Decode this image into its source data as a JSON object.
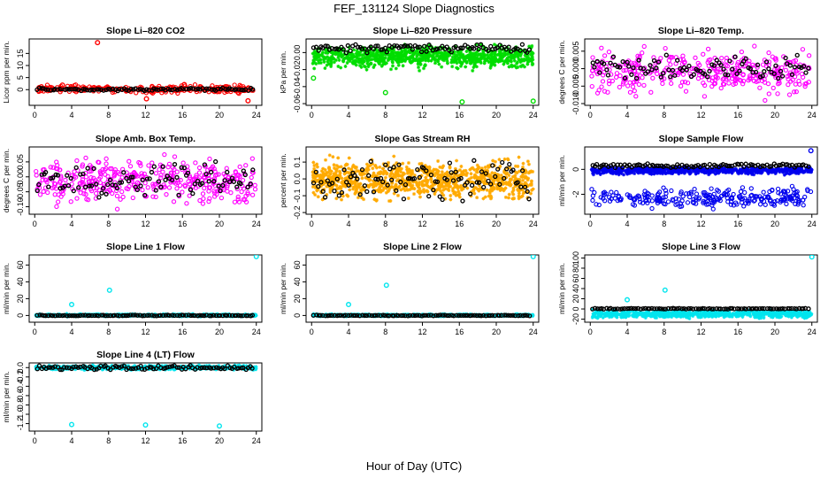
{
  "figure": {
    "title": "FEF_131124  Slope Diagnostics",
    "xlabel": "Hour of Day (UTC)"
  },
  "chart_data": [
    {
      "type": "scatter",
      "title": "Slope Li–820 CO2",
      "ylabel": "Licor ppm per min.",
      "xlim": [
        -0.6,
        24.6
      ],
      "ylim": [
        -6.5,
        21
      ],
      "xticks": [
        "0",
        "4",
        "8",
        "12",
        "16",
        "20",
        "24"
      ],
      "yticks": [
        "0",
        "5",
        "10",
        "15"
      ],
      "yticks_v": [
        0,
        5,
        10,
        15
      ],
      "color": "#ff0000",
      "series": [
        {
          "kind": "cloud",
          "n": 260,
          "ymin": -1.8,
          "ymax": 2.2,
          "marker": "circle"
        },
        {
          "kind": "black",
          "n": 95,
          "ymin": -0.7,
          "ymax": 0.9
        },
        {
          "kind": "points",
          "x": [
            6.8,
            12.1,
            23.1,
            3.0,
            16.2
          ],
          "y": [
            19.5,
            -3.8,
            -4.6,
            1.9,
            2.1
          ]
        }
      ]
    },
    {
      "type": "scatter",
      "title": "Slope Li–820 Pressure",
      "ylabel": "kPa per min.",
      "xlim": [
        -0.6,
        24.6
      ],
      "ylim": [
        -0.062,
        0.016
      ],
      "xticks": [
        "0",
        "4",
        "8",
        "12",
        "16",
        "20",
        "24"
      ],
      "yticks": [
        "0.00",
        "-0.02",
        "-0.04",
        "-0.06"
      ],
      "yticks_v": [
        0,
        -0.02,
        -0.04,
        -0.06
      ],
      "color": "#00dd00",
      "series": [
        {
          "kind": "cloud",
          "n": 900,
          "ymin": -0.022,
          "ymax": 0.012,
          "marker": "star"
        },
        {
          "kind": "black",
          "n": 95,
          "ymin": -0.001,
          "ymax": 0.011
        },
        {
          "kind": "points",
          "x": [
            8.0,
            16.3,
            24.0,
            0.2
          ],
          "y": [
            -0.047,
            -0.058,
            -0.057,
            -0.03
          ]
        }
      ]
    },
    {
      "type": "scatter",
      "title": "Slope Li–820 Temp.",
      "ylabel": "degrees C per min.",
      "xlim": [
        -0.6,
        24.6
      ],
      "ylim": [
        -0.0105,
        0.0085
      ],
      "xticks": [
        "0",
        "4",
        "8",
        "12",
        "16",
        "20",
        "24"
      ],
      "yticks": [
        "-0.010",
        "-0.005",
        "0.000",
        "0.005"
      ],
      "yticks_v": [
        -0.01,
        -0.005,
        0,
        0.005
      ],
      "color": "#ff00ff",
      "series": [
        {
          "kind": "cloud",
          "n": 360,
          "ymin": -0.0098,
          "ymax": 0.0078,
          "marker": "circle"
        },
        {
          "kind": "black",
          "n": 95,
          "ymin": -0.004,
          "ymax": 0.0045
        }
      ]
    },
    {
      "type": "scatter",
      "title": "Slope Amb. Box Temp.",
      "ylabel": "degrees C per min.",
      "xlim": [
        -0.6,
        24.6
      ],
      "ylim": [
        -0.125,
        0.1
      ],
      "xticks": [
        "0",
        "4",
        "8",
        "12",
        "16",
        "20",
        "24"
      ],
      "yticks": [
        "-0.10",
        "-0.05",
        "0.00",
        "0.05"
      ],
      "yticks_v": [
        -0.1,
        -0.05,
        0,
        0.05
      ],
      "color": "#ff00ff",
      "series": [
        {
          "kind": "cloud",
          "n": 380,
          "ymin": -0.118,
          "ymax": 0.085,
          "marker": "circle"
        },
        {
          "kind": "black",
          "n": 95,
          "ymin": -0.075,
          "ymax": 0.055
        }
      ]
    },
    {
      "type": "scatter",
      "title": "Slope Gas Stream RH",
      "ylabel": "percent per min.",
      "xlim": [
        -0.6,
        24.6
      ],
      "ylim": [
        -0.21,
        0.19
      ],
      "xticks": [
        "0",
        "4",
        "8",
        "12",
        "16",
        "20",
        "24"
      ],
      "yticks": [
        "-0.2",
        "-0.1",
        "0.0",
        "0.1"
      ],
      "yticks_v": [
        -0.2,
        -0.1,
        0,
        0.1
      ],
      "color": "#ffaa00",
      "series": [
        {
          "kind": "cloud",
          "n": 1000,
          "ymin": -0.16,
          "ymax": 0.15,
          "marker": "star"
        },
        {
          "kind": "black",
          "n": 95,
          "ymin": -0.15,
          "ymax": 0.13
        }
      ]
    },
    {
      "type": "scatter",
      "title": "Slope Sample Flow",
      "ylabel": "ml/min per min.",
      "xlim": [
        -0.6,
        24.6
      ],
      "ylim": [
        -3.6,
        1.8
      ],
      "xticks": [
        "0",
        "4",
        "8",
        "12",
        "16",
        "20",
        "24"
      ],
      "yticks": [
        "-2",
        "0"
      ],
      "yticks_v": [
        -2,
        0
      ],
      "color": "#0000ee",
      "series": [
        {
          "kind": "cloud",
          "n": 700,
          "ymin": -0.5,
          "ymax": 0.3,
          "marker": "star"
        },
        {
          "kind": "cloud",
          "n": 260,
          "ymin": -3.3,
          "ymax": -1.2,
          "marker": "circle"
        },
        {
          "kind": "black",
          "n": 95,
          "ymin": 0.1,
          "ymax": 0.5
        },
        {
          "kind": "points",
          "x": [
            23.9
          ],
          "y": [
            1.5
          ]
        }
      ]
    },
    {
      "type": "scatter",
      "title": "Slope Line 1 Flow",
      "ylabel": "ml/min per min.",
      "xlim": [
        -0.6,
        24.6
      ],
      "ylim": [
        -8,
        72
      ],
      "xticks": [
        "0",
        "4",
        "8",
        "12",
        "16",
        "20",
        "24"
      ],
      "yticks": [
        "0",
        "20",
        "40",
        "60"
      ],
      "yticks_v": [
        0,
        20,
        40,
        60
      ],
      "color": "#00e5ee",
      "series": [
        {
          "kind": "cloud",
          "n": 700,
          "ymin": -1.8,
          "ymax": 2.2,
          "marker": "star"
        },
        {
          "kind": "black",
          "n": 95,
          "ymin": -0.6,
          "ymax": 0.6
        },
        {
          "kind": "points",
          "x": [
            4.0,
            8.1,
            24.0
          ],
          "y": [
            13,
            30,
            70
          ]
        }
      ]
    },
    {
      "type": "scatter",
      "title": "Slope Line 2 Flow",
      "ylabel": "ml/min per min.",
      "xlim": [
        -0.6,
        24.6
      ],
      "ylim": [
        -8,
        72
      ],
      "xticks": [
        "0",
        "4",
        "8",
        "12",
        "16",
        "20",
        "24"
      ],
      "yticks": [
        "0",
        "20",
        "40",
        "60"
      ],
      "yticks_v": [
        0,
        20,
        40,
        60
      ],
      "color": "#00e5ee",
      "series": [
        {
          "kind": "cloud",
          "n": 700,
          "ymin": -1.8,
          "ymax": 2.2,
          "marker": "star"
        },
        {
          "kind": "black",
          "n": 95,
          "ymin": -0.6,
          "ymax": 0.6
        },
        {
          "kind": "points",
          "x": [
            4.0,
            8.1,
            24.0
          ],
          "y": [
            13,
            36,
            70
          ]
        }
      ]
    },
    {
      "type": "scatter",
      "title": "Slope Line 3 Flow",
      "ylabel": "ml/min per min.",
      "xlim": [
        -0.6,
        24.6
      ],
      "ylim": [
        -26,
        106
      ],
      "xticks": [
        "0",
        "4",
        "8",
        "12",
        "16",
        "20",
        "24"
      ],
      "yticks": [
        "-20",
        "0",
        "20",
        "40",
        "60",
        "80",
        "100"
      ],
      "yticks_v": [
        -20,
        0,
        20,
        40,
        60,
        80,
        100
      ],
      "color": "#00e5ee",
      "series": [
        {
          "kind": "cloud",
          "n": 700,
          "ymin": -20,
          "ymax": 0,
          "marker": "star"
        },
        {
          "kind": "black",
          "n": 95,
          "ymin": -0.5,
          "ymax": 1.5
        },
        {
          "kind": "points",
          "x": [
            4.0,
            8.1,
            24.0
          ],
          "y": [
            18,
            37,
            102
          ]
        }
      ]
    },
    {
      "type": "scatter",
      "title": "Slope Line 4 (LT) Flow",
      "ylabel": "ml/min per min.",
      "xlim": [
        -0.6,
        24.6
      ],
      "ylim": [
        -1.36,
        0.1
      ],
      "xticks": [
        "0",
        "4",
        "8",
        "12",
        "16",
        "20",
        "24"
      ],
      "yticks": [
        "-1.2",
        "-1.0",
        "-0.8",
        "-0.6",
        "-0.4",
        "-0.2",
        "0.0"
      ],
      "yticks_v": [
        -1.2,
        -1.0,
        -0.8,
        -0.6,
        -0.4,
        -0.2,
        0.0
      ],
      "color": "#00e5ee",
      "series": [
        {
          "kind": "cloud",
          "n": 700,
          "ymin": -0.06,
          "ymax": 0.06,
          "marker": "star"
        },
        {
          "kind": "black",
          "n": 95,
          "ymin": -0.05,
          "ymax": 0.05
        },
        {
          "kind": "points",
          "x": [
            4.0,
            12.0,
            20.0
          ],
          "y": [
            -1.22,
            -1.23,
            -1.25
          ]
        }
      ]
    }
  ]
}
